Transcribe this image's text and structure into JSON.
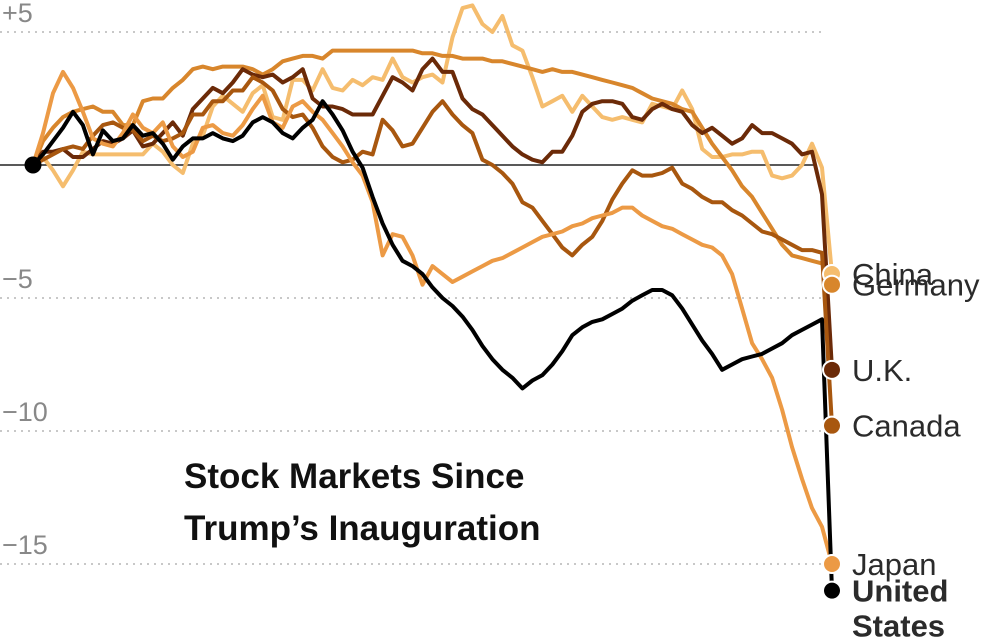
{
  "chart_data": {
    "type": "line",
    "title_lines": [
      "Stock Markets Since",
      "Trump’s Inauguration"
    ],
    "xlabel": "",
    "ylabel": "",
    "y_ticks": [
      {
        "value": 5,
        "label": "+5"
      },
      {
        "value": 0,
        "label": ""
      },
      {
        "value": -5,
        "label": "−5"
      },
      {
        "value": -10,
        "label": "−10"
      },
      {
        "value": -15,
        "label": "−15"
      }
    ],
    "grid": true,
    "legend": "direct labels at line ends",
    "series": [
      {
        "name": "China",
        "label_lines": [
          "China"
        ],
        "bold": false,
        "color": "#f5bd6e",
        "values": [
          0,
          0.3,
          -0.2,
          -0.8,
          -0.2,
          0.5,
          0.4,
          0.4,
          0.4,
          0.4,
          0.4,
          0.4,
          0.8,
          0.5,
          0,
          -0.3,
          0.8,
          1.1,
          2.2,
          2.6,
          2.3,
          2.0,
          2.7,
          3.0,
          1.8,
          1.7,
          3.2,
          3.2,
          2.8,
          3.6,
          2.9,
          2.8,
          3.2,
          3.0,
          3.3,
          3.2,
          4.0,
          3.3,
          3.1,
          3.3,
          3.4,
          3.1,
          4.8,
          5.9,
          6.0,
          5.3,
          5.0,
          5.6,
          4.5,
          4.3,
          3.3,
          2.2,
          2.4,
          2.6,
          2.0,
          2.6,
          2.2,
          1.8,
          1.7,
          1.8,
          1.7,
          1.6,
          2.3,
          2.2,
          2.1,
          2.8,
          2.1,
          0.6,
          0.3,
          0.3,
          0.4,
          0.4,
          0.5,
          0.5,
          -0.4,
          -0.5,
          -0.4,
          0.0,
          0.8,
          -0.1,
          -4.1
        ]
      },
      {
        "name": "Germany",
        "label_lines": [
          "Germany"
        ],
        "bold": false,
        "color": "#d8862c",
        "values": [
          0,
          0.9,
          1.4,
          1.8,
          2.0,
          2.1,
          2.2,
          2.0,
          2.0,
          1.5,
          1.5,
          2.4,
          2.5,
          2.5,
          2.9,
          3.2,
          3.6,
          3.7,
          3.6,
          3.7,
          3.7,
          3.7,
          3.6,
          3.4,
          3.6,
          3.9,
          4.0,
          4.1,
          4.1,
          4.0,
          4.3,
          4.3,
          4.3,
          4.3,
          4.3,
          4.3,
          4.3,
          4.3,
          4.3,
          4.2,
          4.2,
          4.1,
          4.1,
          4.0,
          4.0,
          4.0,
          3.9,
          3.9,
          3.8,
          3.7,
          3.6,
          3.5,
          3.6,
          3.5,
          3.5,
          3.4,
          3.3,
          3.2,
          3.1,
          3.0,
          2.9,
          2.7,
          2.5,
          2.4,
          2.3,
          2.1,
          2.0,
          1.4,
          0.8,
          0.3,
          -0.2,
          -0.8,
          -1.2,
          -1.8,
          -2.4,
          -3.0,
          -3.4,
          -3.5,
          -3.6,
          -3.7,
          -4.5
        ]
      },
      {
        "name": "U.K.",
        "label_lines": [
          "U.K."
        ],
        "bold": false,
        "color": "#6b2a08",
        "values": [
          0,
          0.5,
          0.5,
          0.6,
          0.3,
          0.3,
          0.6,
          0.9,
          0.8,
          1.0,
          1.3,
          0.7,
          0.8,
          1.2,
          1.6,
          1.1,
          2.1,
          2.5,
          2.9,
          2.7,
          3.1,
          3.6,
          3.4,
          3.3,
          3.4,
          3.1,
          3.3,
          3.6,
          2.5,
          2.2,
          2.2,
          2.1,
          1.9,
          1.9,
          1.9,
          2.6,
          3.3,
          3.1,
          2.8,
          3.6,
          4.0,
          3.5,
          3.5,
          2.5,
          2.1,
          1.9,
          1.5,
          1.1,
          0.7,
          0.4,
          0.2,
          0.1,
          0.5,
          0.5,
          1.1,
          2.0,
          2.3,
          2.4,
          2.4,
          2.3,
          1.8,
          1.7,
          2.1,
          2.3,
          2.1,
          2.0,
          1.5,
          1.2,
          1.4,
          1.1,
          0.8,
          1.0,
          1.5,
          1.2,
          1.2,
          1.0,
          0.8,
          0.4,
          0.5,
          -1.1,
          -7.7
        ]
      },
      {
        "name": "Canada",
        "label_lines": [
          "Canada"
        ],
        "bold": false,
        "color": "#a8570f",
        "values": [
          0,
          0.2,
          0.4,
          0.6,
          0.7,
          0.6,
          1.1,
          1.5,
          1.6,
          1.4,
          1.3,
          0.9,
          1.1,
          0.9,
          1.0,
          1.2,
          1.9,
          1.9,
          2.4,
          2.4,
          2.8,
          2.8,
          3.3,
          3.1,
          2.8,
          2.1,
          1.8,
          1.9,
          1.4,
          0.7,
          0.3,
          0.1,
          0.2,
          0.5,
          0.4,
          1.7,
          1.3,
          0.7,
          0.8,
          1.4,
          2.0,
          2.4,
          1.9,
          1.5,
          1.2,
          0.2,
          0.0,
          -0.3,
          -0.7,
          -1.4,
          -1.6,
          -2.1,
          -2.6,
          -3.1,
          -3.4,
          -3.0,
          -2.7,
          -2.1,
          -1.3,
          -0.7,
          -0.2,
          -0.4,
          -0.4,
          -0.3,
          -0.1,
          -0.7,
          -0.9,
          -1.2,
          -1.4,
          -1.4,
          -1.7,
          -1.9,
          -2.2,
          -2.5,
          -2.6,
          -2.8,
          -3.0,
          -3.2,
          -3.2,
          -3.3,
          -9.8
        ]
      },
      {
        "name": "Japan",
        "label_lines": [
          "Japan"
        ],
        "bold": false,
        "color": "#ec9a45",
        "values": [
          0,
          1.2,
          2.7,
          3.5,
          2.9,
          2.0,
          1.0,
          0.8,
          0.7,
          1.2,
          1.9,
          1.4,
          1.2,
          1.6,
          0.7,
          0.3,
          0.5,
          1.4,
          1.5,
          1.2,
          1.1,
          1.5,
          2.1,
          2.6,
          1.6,
          1.4,
          2.2,
          2.4,
          2.0,
          1.7,
          1.2,
          0.7,
          0.1,
          -0.4,
          -1.4,
          -3.4,
          -2.6,
          -2.7,
          -3.4,
          -4.5,
          -3.8,
          -4.1,
          -4.4,
          -4.2,
          -4.0,
          -3.8,
          -3.6,
          -3.5,
          -3.3,
          -3.1,
          -2.9,
          -2.7,
          -2.6,
          -2.5,
          -2.3,
          -2.2,
          -2.0,
          -1.9,
          -1.8,
          -1.6,
          -1.6,
          -1.9,
          -2.1,
          -2.3,
          -2.4,
          -2.6,
          -2.8,
          -3.0,
          -3.1,
          -3.4,
          -4.1,
          -5.4,
          -6.7,
          -7.3,
          -8.0,
          -9.2,
          -10.6,
          -11.8,
          -12.9,
          -13.6,
          -15.0
        ]
      },
      {
        "name": "United States",
        "label_lines": [
          "United",
          "States"
        ],
        "bold": true,
        "color": "#000000",
        "values": [
          0,
          0.4,
          0.9,
          1.4,
          2.0,
          1.5,
          0.4,
          1.3,
          0.9,
          1.0,
          1.5,
          1.1,
          1.2,
          0.8,
          0.2,
          0.7,
          1.0,
          1.0,
          1.2,
          1.0,
          0.9,
          1.1,
          1.6,
          1.8,
          1.6,
          1.2,
          1.0,
          1.4,
          1.7,
          2.4,
          1.9,
          1.3,
          0.5,
          -0.1,
          -1.2,
          -2.2,
          -3.0,
          -3.6,
          -3.8,
          -4.1,
          -4.6,
          -5.0,
          -5.3,
          -5.7,
          -6.2,
          -6.8,
          -7.3,
          -7.7,
          -8.0,
          -8.4,
          -8.1,
          -7.9,
          -7.5,
          -7.0,
          -6.4,
          -6.1,
          -5.9,
          -5.8,
          -5.6,
          -5.4,
          -5.1,
          -4.9,
          -4.7,
          -4.7,
          -4.9,
          -5.4,
          -6.0,
          -6.6,
          -7.1,
          -7.7,
          -7.5,
          -7.3,
          -7.2,
          -7.1,
          -6.9,
          -6.7,
          -6.4,
          -6.2,
          -6.0,
          -5.8,
          -16.0
        ]
      }
    ],
    "annotations": []
  }
}
